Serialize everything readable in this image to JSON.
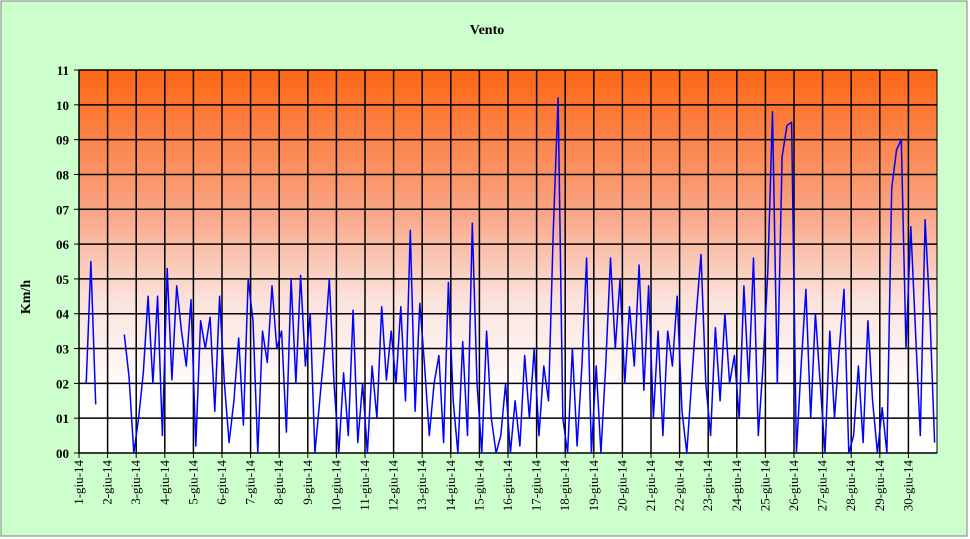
{
  "chart_data": {
    "type": "line",
    "title": "Vento",
    "y_label": "Km/h",
    "categories": [
      "1-giu-14",
      null,
      null,
      null,
      null,
      null,
      "2-giu-14",
      null,
      null,
      null,
      null,
      null,
      "3-giu-14",
      null,
      null,
      null,
      null,
      null,
      "4-giu-14",
      null,
      null,
      null,
      null,
      null,
      "5-giu-14",
      null,
      null,
      null,
      null,
      null,
      "6-giu-14",
      null,
      null,
      null,
      null,
      null,
      "7-giu-14",
      null,
      null,
      null,
      null,
      null,
      "8-giu-14",
      null,
      null,
      null,
      null,
      null,
      "9-giu-14",
      null,
      null,
      null,
      null,
      null,
      "10-giu-14",
      null,
      null,
      null,
      null,
      null,
      "11-giu-14",
      null,
      null,
      null,
      null,
      null,
      "12-giu-14",
      null,
      null,
      null,
      null,
      null,
      "13-giu-14",
      null,
      null,
      null,
      null,
      null,
      "14-giu-14",
      null,
      null,
      null,
      null,
      null,
      "15-giu-14",
      null,
      null,
      null,
      null,
      null,
      "16-giu-14",
      null,
      null,
      null,
      null,
      null,
      "17-giu-14",
      null,
      null,
      null,
      null,
      null,
      "18-giu-14",
      null,
      null,
      null,
      null,
      null,
      "19-giu-14",
      null,
      null,
      null,
      null,
      null,
      "20-giu-14",
      null,
      null,
      null,
      null,
      null,
      "21-giu-14",
      null,
      null,
      null,
      null,
      null,
      "22-giu-14",
      null,
      null,
      null,
      null,
      null,
      "23-giu-14",
      null,
      null,
      null,
      null,
      null,
      "24-giu-14",
      null,
      null,
      null,
      null,
      null,
      "25-giu-14",
      null,
      null,
      null,
      null,
      null,
      "26-giu-14",
      null,
      null,
      null,
      null,
      null,
      "27-giu-14",
      null,
      null,
      null,
      null,
      null,
      "28-giu-14",
      null,
      null,
      null,
      null,
      null,
      "29-giu-14",
      null,
      null,
      null,
      null,
      null,
      "30-giu-14",
      null,
      null,
      null,
      null,
      null
    ],
    "series": [
      {
        "name": "Vento",
        "color": "#0000ff",
        "values": [
          null,
          2.0,
          5.5,
          1.4,
          null,
          null,
          null,
          null,
          null,
          3.4,
          2.2,
          0.0,
          1.0,
          2.3,
          4.5,
          2.0,
          4.5,
          0.5,
          5.3,
          2.1,
          4.8,
          3.5,
          2.5,
          4.4,
          0.2,
          3.8,
          3.0,
          3.9,
          1.2,
          4.5,
          2.0,
          0.3,
          1.5,
          3.3,
          0.8,
          5.0,
          3.8,
          0.0,
          3.5,
          2.6,
          4.8,
          3.0,
          3.5,
          0.6,
          5.0,
          2.0,
          5.1,
          2.5,
          4.0,
          0.0,
          1.5,
          3.0,
          5.0,
          2.0,
          0.0,
          2.3,
          0.5,
          4.1,
          0.3,
          2.0,
          0.0,
          2.5,
          1.0,
          4.2,
          2.1,
          3.5,
          2.0,
          4.2,
          1.5,
          6.4,
          1.2,
          4.3,
          2.5,
          0.5,
          2.0,
          2.8,
          0.3,
          4.9,
          1.5,
          0.0,
          3.2,
          0.5,
          6.6,
          2.0,
          0.0,
          3.5,
          1.0,
          0.0,
          0.5,
          2.0,
          0.0,
          1.5,
          0.2,
          2.8,
          1.0,
          3.0,
          0.5,
          2.5,
          1.5,
          6.4,
          10.2,
          1.0,
          0.0,
          3.0,
          0.2,
          2.5,
          5.6,
          0.0,
          2.5,
          0.0,
          2.5,
          5.6,
          3.0,
          5.0,
          2.0,
          4.2,
          2.5,
          5.4,
          1.8,
          4.8,
          1.0,
          3.5,
          0.5,
          3.5,
          2.5,
          4.5,
          1.2,
          0.0,
          2.0,
          4.0,
          5.7,
          2.0,
          0.5,
          3.6,
          1.5,
          4.0,
          2.0,
          2.8,
          1.0,
          4.8,
          2.0,
          5.6,
          0.5,
          2.5,
          5.2,
          9.8,
          2.0,
          8.5,
          9.4,
          9.5,
          0.0,
          2.5,
          4.7,
          1.0,
          4.0,
          2.0,
          0.0,
          3.5,
          1.0,
          3.0,
          4.7,
          0.0,
          0.5,
          2.5,
          0.3,
          3.8,
          1.5,
          0.0,
          1.3,
          0.0,
          7.6,
          8.7,
          9.0,
          3.0,
          6.5,
          3.5,
          0.5,
          6.7,
          4.0,
          0.3
        ]
      }
    ],
    "ylim": [
      0,
      11
    ],
    "yticks": [
      {
        "value": 0,
        "label": "00"
      },
      {
        "value": 1,
        "label": "01"
      },
      {
        "value": 2,
        "label": "02"
      },
      {
        "value": 3,
        "label": "03"
      },
      {
        "value": 4,
        "label": "04"
      },
      {
        "value": 5,
        "label": "05"
      },
      {
        "value": 6,
        "label": "06"
      },
      {
        "value": 7,
        "label": "07"
      },
      {
        "value": 8,
        "label": "08"
      },
      {
        "value": 9,
        "label": "09"
      },
      10,
      11
    ],
    "grid": true
  }
}
